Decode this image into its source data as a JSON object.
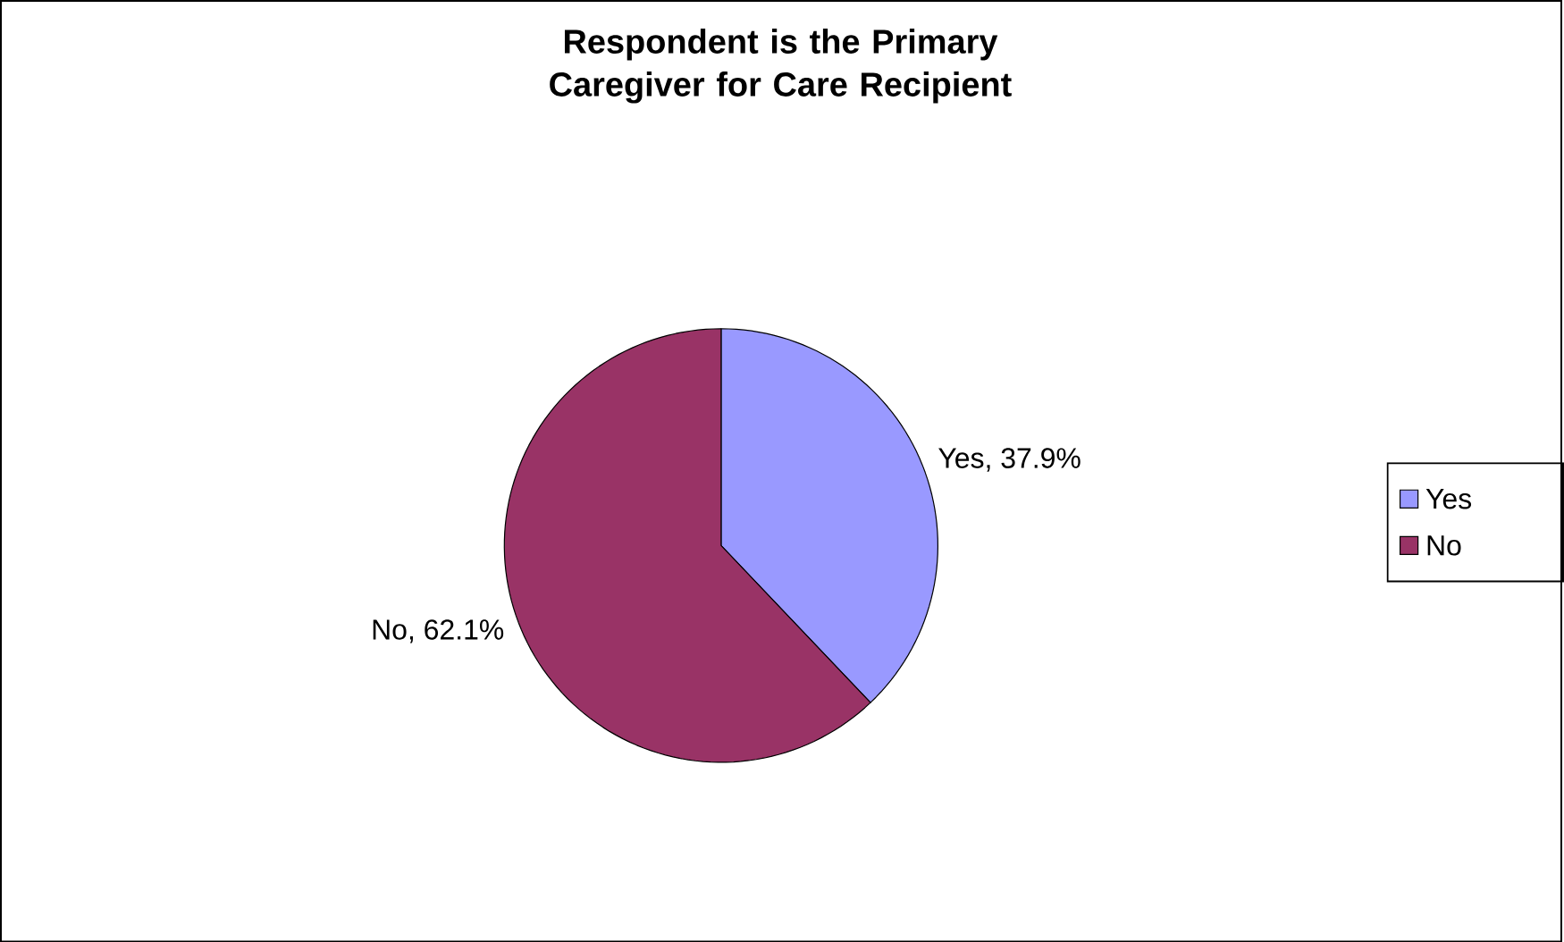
{
  "chart_data": {
    "type": "pie",
    "title": "Respondent is the Primary Caregiver for Care Recipient",
    "categories": [
      "Yes",
      "No"
    ],
    "values": [
      37.9,
      62.1
    ],
    "colors": [
      "#9999ff",
      "#993366"
    ],
    "value_labels": [
      "Yes, 37.9%",
      "No, 62.1%"
    ],
    "legend": "right"
  }
}
